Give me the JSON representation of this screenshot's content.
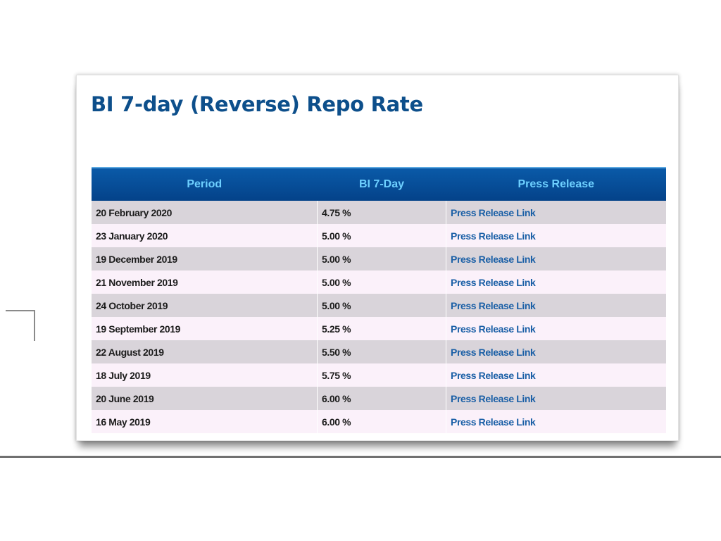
{
  "title": "BI 7-day (Reverse) Repo Rate",
  "table": {
    "headers": {
      "period": "Period",
      "rate": "BI 7-Day",
      "press": "Press Release"
    },
    "rows": [
      {
        "period": "20 February 2020",
        "rate": "4.75 %",
        "press": "Press Release Link"
      },
      {
        "period": "23 January 2020",
        "rate": "5.00 %",
        "press": "Press Release Link"
      },
      {
        "period": "19 December 2019",
        "rate": "5.00 %",
        "press": "Press Release Link"
      },
      {
        "period": "21 November 2019",
        "rate": "5.00 %",
        "press": "Press Release Link"
      },
      {
        "period": "24 October 2019",
        "rate": "5.00 %",
        "press": "Press Release Link"
      },
      {
        "period": "19 September 2019",
        "rate": "5.25 %",
        "press": "Press Release Link"
      },
      {
        "period": "22 August 2019",
        "rate": "5.50 %",
        "press": "Press Release Link"
      },
      {
        "period": "18 July 2019",
        "rate": "5.75 %",
        "press": "Press Release Link"
      },
      {
        "period": "20 June 2019",
        "rate": "6.00 %",
        "press": "Press Release Link"
      },
      {
        "period": "16 May 2019",
        "rate": "6.00 %",
        "press": "Press Release Link"
      }
    ]
  },
  "colors": {
    "title": "#0d4f8b",
    "header_bg": "#044289",
    "header_text": "#6ed0ff",
    "link": "#1a5fa6",
    "row_odd": "#d9d4da",
    "row_even": "#fbf1fa"
  }
}
